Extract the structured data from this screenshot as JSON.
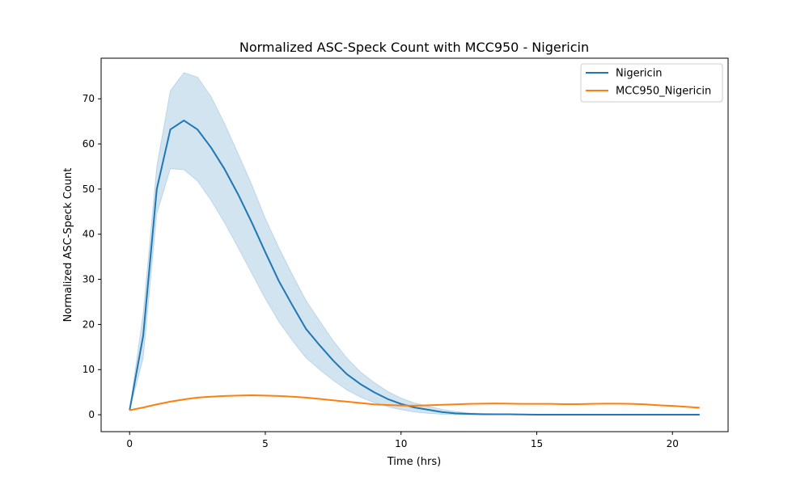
{
  "chart_data": {
    "type": "line",
    "title": "Normalized ASC-Speck Count with MCC950 - Nigericin",
    "xlabel": "Time (hrs)",
    "ylabel": "Normalized ASC-Speck Count",
    "xlim": [
      -1.05,
      22.05
    ],
    "ylim": [
      -3.75,
      79.0
    ],
    "xticks": [
      0,
      5,
      10,
      15,
      20
    ],
    "yticks": [
      0,
      10,
      20,
      30,
      40,
      50,
      60,
      70
    ],
    "grid": false,
    "legend_position": "top-right",
    "x": [
      0,
      0.5,
      1,
      1.5,
      2,
      2.5,
      3,
      3.5,
      4,
      4.5,
      5,
      5.5,
      6,
      6.5,
      7,
      7.5,
      8,
      8.5,
      9,
      9.5,
      10,
      10.5,
      11,
      11.5,
      12,
      12.5,
      13,
      13.5,
      14,
      14.5,
      15,
      15.5,
      16,
      16.5,
      17,
      17.5,
      18,
      18.5,
      19,
      19.5,
      20,
      20.5,
      21
    ],
    "series": [
      {
        "name": "Nigericin",
        "color": "#1f77b4",
        "values": [
          1.0,
          17.5,
          50.0,
          63.2,
          65.2,
          63.2,
          59.2,
          54.4,
          48.8,
          42.6,
          36.0,
          29.6,
          24.2,
          19.0,
          15.4,
          12.0,
          9.0,
          6.8,
          5.0,
          3.5,
          2.4,
          1.6,
          1.1,
          0.6,
          0.3,
          0.2,
          0.1,
          0.1,
          0.1,
          0.05,
          0.0,
          0.0,
          0.0,
          0.0,
          0.0,
          0.0,
          0.0,
          0.0,
          0.0,
          0.0,
          0.0,
          0.0,
          0.0
        ],
        "ci_lower": [
          1.0,
          12.5,
          44.5,
          54.5,
          54.3,
          51.8,
          47.5,
          42.5,
          37.0,
          31.3,
          25.7,
          20.6,
          16.4,
          12.6,
          10.0,
          7.6,
          5.5,
          3.9,
          2.7,
          1.8,
          1.1,
          0.6,
          0.3,
          0.1,
          0.0,
          0.0,
          0.0,
          0.0,
          0.0,
          0.0,
          0.0,
          0.0,
          0.0,
          0.0,
          0.0,
          0.0,
          0.0,
          0.0,
          0.0,
          0.0,
          0.0,
          0.0,
          0.0
        ],
        "ci_upper": [
          1.0,
          22.5,
          55.0,
          71.8,
          75.8,
          74.8,
          70.5,
          64.5,
          57.8,
          51.0,
          43.5,
          37.0,
          31.0,
          25.3,
          20.8,
          16.4,
          12.6,
          9.5,
          7.2,
          5.2,
          3.7,
          2.6,
          1.9,
          1.2,
          0.7,
          0.4,
          0.3,
          0.2,
          0.2,
          0.1,
          0.1,
          0.05,
          0.05,
          0.05,
          0.05,
          0.05,
          0.05,
          0.05,
          0.05,
          0.05,
          0.05,
          0.05,
          0.05
        ]
      },
      {
        "name": "MCC950_Nigericin",
        "color": "#ff7f0e",
        "values": [
          1.0,
          1.6,
          2.3,
          2.9,
          3.4,
          3.8,
          4.0,
          4.15,
          4.25,
          4.3,
          4.25,
          4.15,
          4.0,
          3.8,
          3.5,
          3.2,
          2.9,
          2.6,
          2.3,
          2.15,
          2.05,
          2.0,
          2.1,
          2.2,
          2.3,
          2.4,
          2.45,
          2.5,
          2.45,
          2.4,
          2.4,
          2.4,
          2.35,
          2.35,
          2.4,
          2.45,
          2.45,
          2.4,
          2.3,
          2.1,
          1.95,
          1.75,
          1.55
        ]
      }
    ]
  }
}
